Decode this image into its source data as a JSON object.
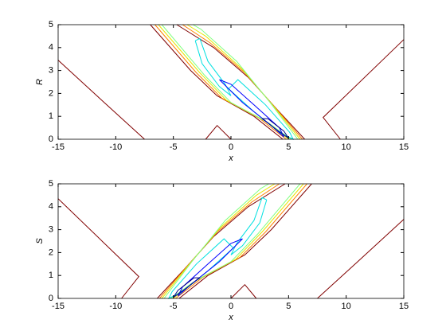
{
  "chart_data": [
    {
      "type": "contour",
      "xlabel": "x",
      "ylabel": "R",
      "xlim": [
        -15,
        15
      ],
      "ylim": [
        0,
        5
      ],
      "xticks": [
        -15,
        -10,
        -5,
        0,
        5,
        10,
        15
      ],
      "yticks": [
        0,
        1,
        2,
        3,
        4,
        5
      ],
      "series": [
        {
          "color": "#800000",
          "x": [
            -15,
            -11,
            -7.5,
            null,
            15,
            8,
            9.5,
            null,
            -2.2,
            -1.2,
            0,
            null,
            -7,
            -3.5,
            -1.2,
            2,
            4.5,
            null,
            6.4,
            4,
            1.5,
            -1.5,
            -4.7
          ],
          "values": [
            3.45,
            1.6,
            0,
            null,
            4.35,
            0.95,
            0,
            null,
            0,
            0.6,
            0,
            null,
            5,
            3,
            1.9,
            1,
            0,
            null,
            0,
            1.3,
            2.7,
            4,
            5
          ]
        },
        {
          "color": "#ff8000",
          "x": [
            -6.6,
            -3,
            -0.8,
            2.5,
            4.8,
            null,
            6.2,
            3.8,
            1.2,
            -1.8,
            -4.2
          ],
          "values": [
            5,
            2.9,
            1.8,
            0.9,
            0,
            null,
            0,
            1.4,
            2.9,
            4.2,
            5
          ]
        },
        {
          "color": "#e6e600",
          "x": [
            -6.3,
            -2.7,
            -0.4,
            3,
            5,
            null,
            6,
            3.6,
            0.9,
            -2.2,
            -3.8
          ],
          "values": [
            5,
            2.9,
            1.7,
            0.8,
            0,
            null,
            0,
            1.5,
            3.1,
            4.5,
            5
          ]
        },
        {
          "color": "#80ff80",
          "x": [
            -6,
            -2.3,
            0,
            3.3,
            5.2,
            null,
            5.8,
            3.4,
            0.5,
            -2.6,
            -3.3
          ],
          "values": [
            5,
            2.8,
            1.6,
            0.7,
            0,
            null,
            0,
            1.6,
            3.4,
            4.8,
            5
          ]
        },
        {
          "color": "#00e0e0",
          "x": [
            -3.1,
            -2.5,
            -1,
            0,
            -0.5,
            -2,
            -2.7,
            -3.1,
            null,
            -0.2,
            2,
            4.2,
            5.4,
            5.1,
            3,
            0.6,
            -0.2
          ],
          "values": [
            4.3,
            3.3,
            2.3,
            1.9,
            2.4,
            3.4,
            4.4,
            4.3,
            null,
            2.2,
            1.2,
            0.3,
            0,
            0.3,
            1.5,
            2.6,
            2.2
          ]
        },
        {
          "color": "#0000ff",
          "x": [
            -1,
            1,
            3.5,
            4.6,
            4.2,
            2,
            0,
            -1
          ],
          "values": [
            2.6,
            1.6,
            0.6,
            0.1,
            0.5,
            1.5,
            2.4,
            2.6
          ]
        },
        {
          "color": "#000080",
          "x": [
            2.7,
            4,
            5,
            4.6,
            3.2,
            2.7
          ],
          "values": [
            0.9,
            0.4,
            0.05,
            0.35,
            0.9,
            0.9
          ]
        }
      ]
    },
    {
      "type": "contour",
      "xlabel": "x",
      "ylabel": "S",
      "xlim": [
        -15,
        15
      ],
      "ylim": [
        0,
        5
      ],
      "xticks": [
        -15,
        -10,
        -5,
        0,
        5,
        10,
        15
      ],
      "yticks": [
        0,
        1,
        2,
        3,
        4,
        5
      ],
      "series": [
        {
          "color": "#800000",
          "x": [
            15,
            11,
            7.5,
            null,
            -15,
            -8,
            -9.5,
            null,
            2.2,
            1.2,
            0,
            null,
            7,
            3.5,
            1.2,
            -2,
            -4.5,
            null,
            -6.4,
            -4,
            -1.5,
            1.5,
            4.7
          ],
          "values": [
            3.45,
            1.6,
            0,
            null,
            4.35,
            0.95,
            0,
            null,
            0,
            0.6,
            0,
            null,
            5,
            3,
            1.9,
            1,
            0,
            null,
            0,
            1.3,
            2.7,
            4,
            5
          ]
        },
        {
          "color": "#ff8000",
          "x": [
            6.6,
            3,
            0.8,
            -2.5,
            -4.8,
            null,
            -6.2,
            -3.8,
            -1.2,
            1.8,
            4.2
          ],
          "values": [
            5,
            2.9,
            1.8,
            0.9,
            0,
            null,
            0,
            1.4,
            2.9,
            4.2,
            5
          ]
        },
        {
          "color": "#e6e600",
          "x": [
            6.3,
            2.7,
            0.4,
            -3,
            -5,
            null,
            -6,
            -3.6,
            -0.9,
            2.2,
            3.8
          ],
          "values": [
            5,
            2.9,
            1.7,
            0.8,
            0,
            null,
            0,
            1.5,
            3.1,
            4.5,
            5
          ]
        },
        {
          "color": "#80ff80",
          "x": [
            6,
            2.3,
            0,
            -3.3,
            -5.2,
            null,
            -5.8,
            -3.4,
            -0.5,
            2.6,
            3.3
          ],
          "values": [
            5,
            2.8,
            1.6,
            0.7,
            0,
            null,
            0,
            1.6,
            3.4,
            4.8,
            5
          ]
        },
        {
          "color": "#00e0e0",
          "x": [
            3.1,
            2.5,
            1,
            0,
            0.5,
            2,
            2.7,
            3.1,
            null,
            0.2,
            -2,
            -4.2,
            -5.4,
            -5.1,
            -3,
            -0.6,
            0.2
          ],
          "values": [
            4.3,
            3.3,
            2.3,
            1.9,
            2.4,
            3.4,
            4.4,
            4.3,
            null,
            2.2,
            1.2,
            0.3,
            0,
            0.3,
            1.5,
            2.6,
            2.2
          ]
        },
        {
          "color": "#0000ff",
          "x": [
            1,
            -1,
            -3.5,
            -4.6,
            -4.2,
            -2,
            0,
            1
          ],
          "values": [
            2.6,
            1.6,
            0.6,
            0.1,
            0.5,
            1.5,
            2.4,
            2.6
          ]
        },
        {
          "color": "#000080",
          "x": [
            -2.7,
            -4,
            -5,
            -4.6,
            -3.2,
            -2.7
          ],
          "values": [
            0.9,
            0.4,
            0.05,
            0.35,
            0.9,
            0.9
          ]
        }
      ]
    }
  ]
}
